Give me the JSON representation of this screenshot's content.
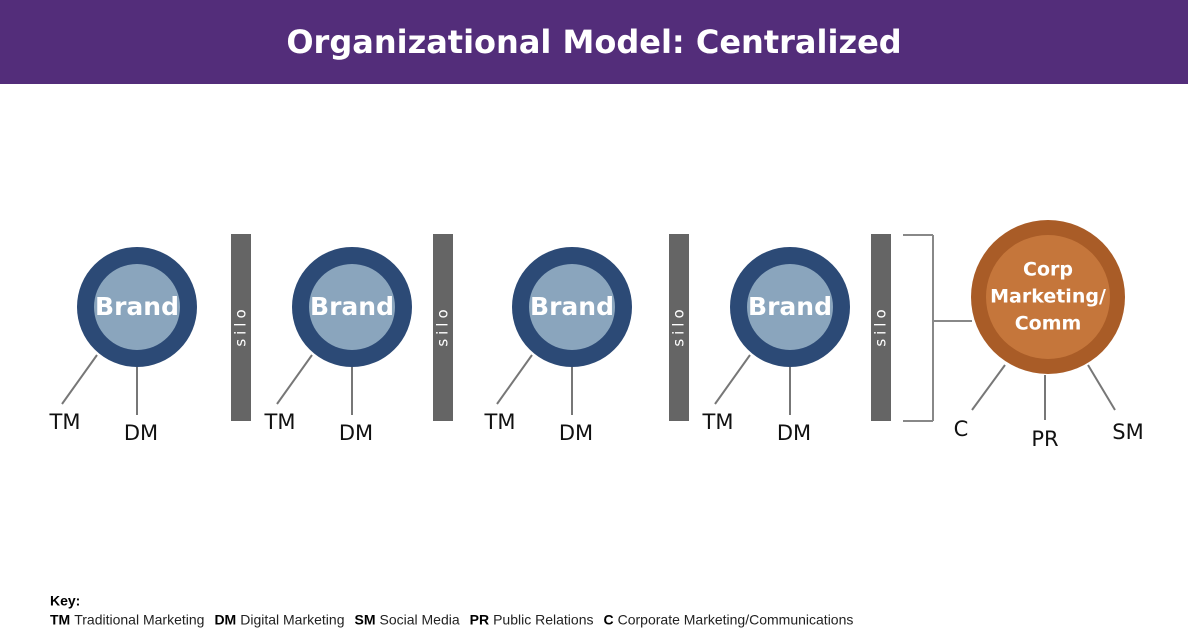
{
  "header": {
    "title": "Organizational Model: Centralized"
  },
  "brands": [
    {
      "label": "Brand",
      "left": "TM",
      "right": "DM"
    },
    {
      "label": "Brand",
      "left": "TM",
      "right": "DM"
    },
    {
      "label": "Brand",
      "left": "TM",
      "right": "DM"
    },
    {
      "label": "Brand",
      "left": "TM",
      "right": "DM"
    }
  ],
  "silos": [
    {
      "label": "silo"
    },
    {
      "label": "silo"
    },
    {
      "label": "silo"
    },
    {
      "label": "silo"
    }
  ],
  "corp": {
    "label_lines": [
      "Corp",
      "Marketing/",
      "Comm"
    ],
    "spokes": [
      "C",
      "PR",
      "SM"
    ]
  },
  "key": {
    "title": "Key:",
    "items": [
      {
        "abbr": "TM",
        "text": "Traditional Marketing"
      },
      {
        "abbr": "DM",
        "text": "Digital Marketing"
      },
      {
        "abbr": "SM",
        "text": "Social Media"
      },
      {
        "abbr": "PR",
        "text": "Public Relations"
      },
      {
        "abbr": "C",
        "text": "Corporate Marketing/Communications"
      }
    ]
  }
}
